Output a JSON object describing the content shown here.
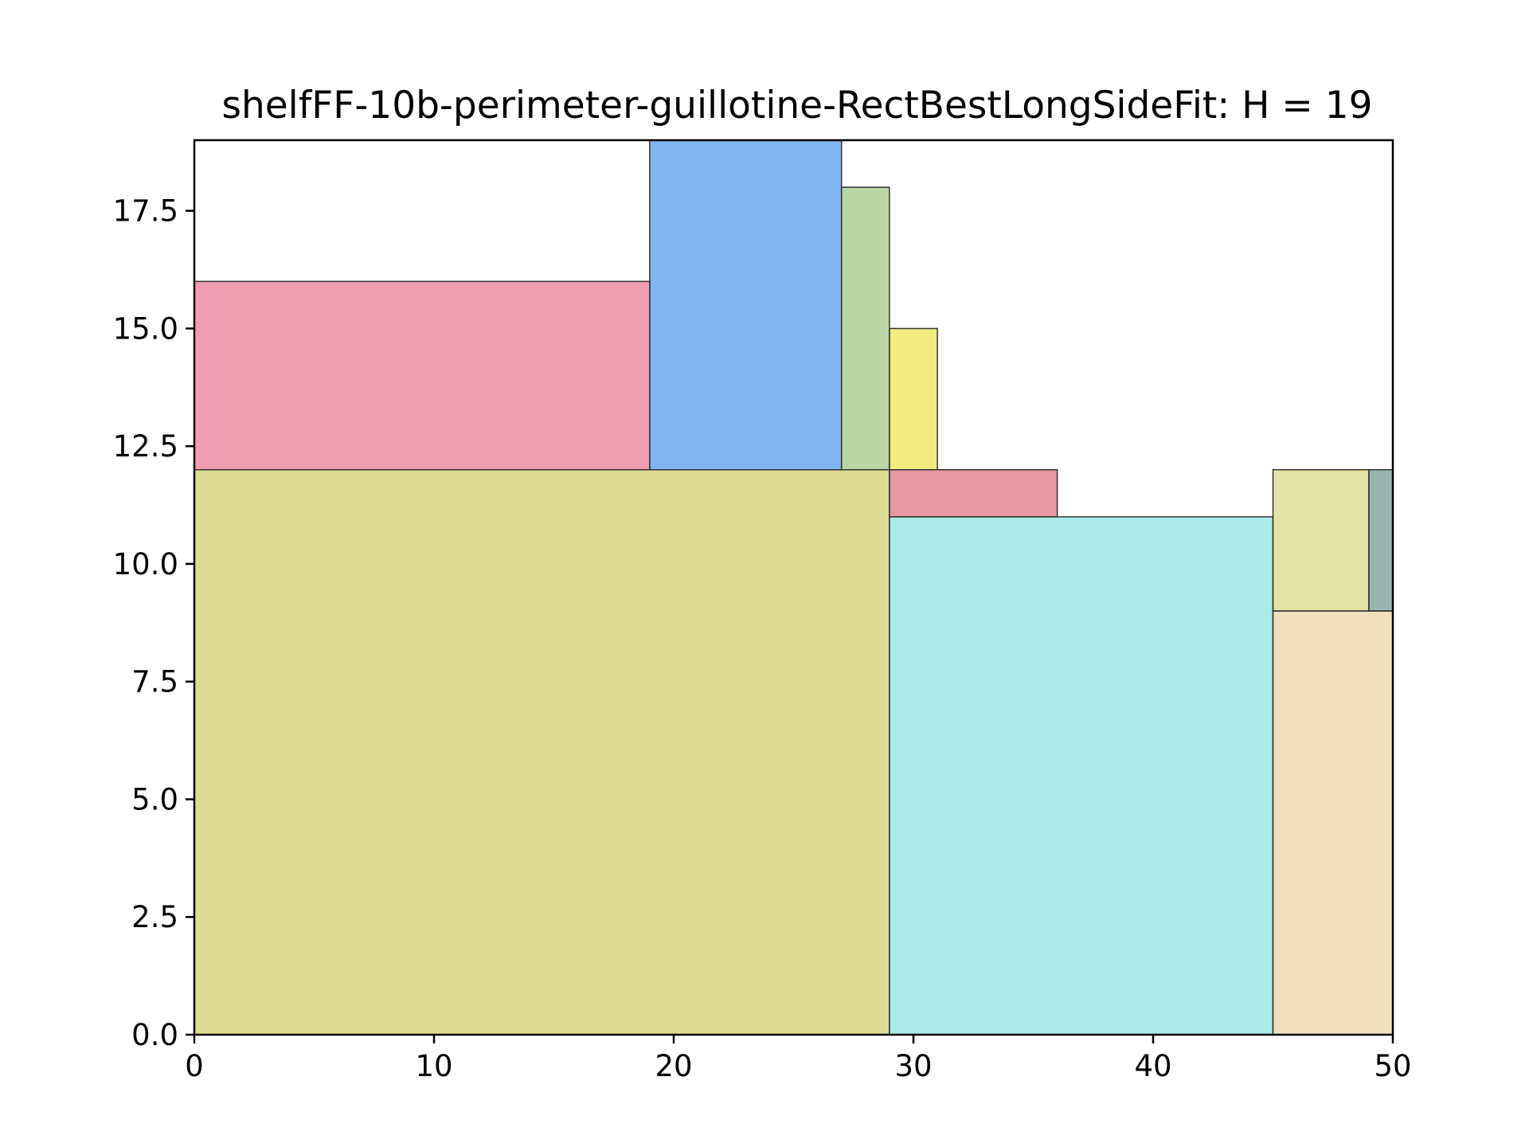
{
  "chart_data": {
    "type": "rectangle-packing",
    "title": "shelfFF-10b-perimeter-guillotine-RectBestLongSideFit: H = 19",
    "xlabel": "",
    "ylabel": "",
    "xlim": [
      0,
      50
    ],
    "ylim": [
      0,
      19
    ],
    "grid": false,
    "x_ticks": [
      {
        "value": 0,
        "label": "0"
      },
      {
        "value": 10,
        "label": "10"
      },
      {
        "value": 20,
        "label": "20"
      },
      {
        "value": 30,
        "label": "30"
      },
      {
        "value": 40,
        "label": "40"
      },
      {
        "value": 50,
        "label": "50"
      }
    ],
    "y_ticks": [
      {
        "value": 0,
        "label": "0.0"
      },
      {
        "value": 2.5,
        "label": "2.5"
      },
      {
        "value": 5,
        "label": "5.0"
      },
      {
        "value": 7.5,
        "label": "7.5"
      },
      {
        "value": 10,
        "label": "10.0"
      },
      {
        "value": 12.5,
        "label": "12.5"
      },
      {
        "value": 15,
        "label": "15.0"
      },
      {
        "value": 17.5,
        "label": "17.5"
      }
    ],
    "rectangles": [
      {
        "x": 0,
        "y": 0,
        "w": 29,
        "h": 12,
        "color": "#bdb82d"
      },
      {
        "x": 0,
        "y": 12,
        "w": 19,
        "h": 4,
        "color": "#e23d69"
      },
      {
        "x": 19,
        "y": 12,
        "w": 8,
        "h": 7,
        "color": "#056ee6"
      },
      {
        "x": 27,
        "y": 12,
        "w": 2,
        "h": 6,
        "color": "#74ae4a"
      },
      {
        "x": 29,
        "y": 12,
        "w": 2,
        "h": 3,
        "color": "#e5d700"
      },
      {
        "x": 29,
        "y": 11,
        "w": 7,
        "h": 1,
        "color": "#cf3246"
      },
      {
        "x": 29,
        "y": 0,
        "w": 16,
        "h": 11,
        "color": "#5ad8d0"
      },
      {
        "x": 45,
        "y": 0,
        "w": 5,
        "h": 9,
        "color": "#e3c17d"
      },
      {
        "x": 45,
        "y": 9,
        "w": 4,
        "h": 3,
        "color": "#c9c74c"
      },
      {
        "x": 49,
        "y": 9,
        "w": 1,
        "h": 3,
        "color": "#2f6c68"
      }
    ]
  }
}
